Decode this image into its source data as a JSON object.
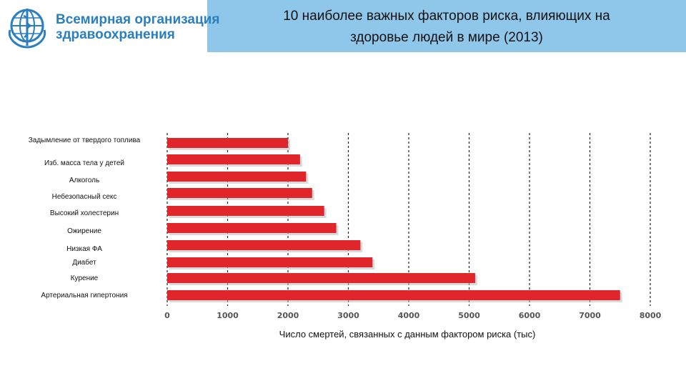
{
  "header": {
    "org_name": "Всемирная организация\nздравоохранения",
    "logo_icon": "who-emblem-icon",
    "bar_color": "#8ec7ea"
  },
  "title": "10 наиболее важных факторов риска,      влияющих на\nздоровье людей в мире (2013)",
  "chart_data": {
    "type": "bar",
    "orientation": "horizontal",
    "categories": [
      "Задымление от твердого топлива",
      "Изб. масса тела у детей",
      "Алкоголь",
      "Небезопасный секс",
      "Высокий холестерин",
      "Ожирение",
      "Низкая ФА",
      "Диабет",
      "Курение",
      "Артериальная гипертония"
    ],
    "values": [
      2000,
      2200,
      2300,
      2400,
      2600,
      2800,
      3200,
      3400,
      5100,
      7500
    ],
    "xlabel": "Число смертей, связанных с данным фактором риска (тыс)",
    "ylabel": "",
    "xlim": [
      0,
      8000
    ],
    "ticks": [
      "0",
      "1000",
      "2000",
      "3000",
      "4000",
      "5000",
      "6000",
      "7000",
      "8000"
    ],
    "grid": "vertical dashed",
    "bar_color": "#e0262a"
  }
}
